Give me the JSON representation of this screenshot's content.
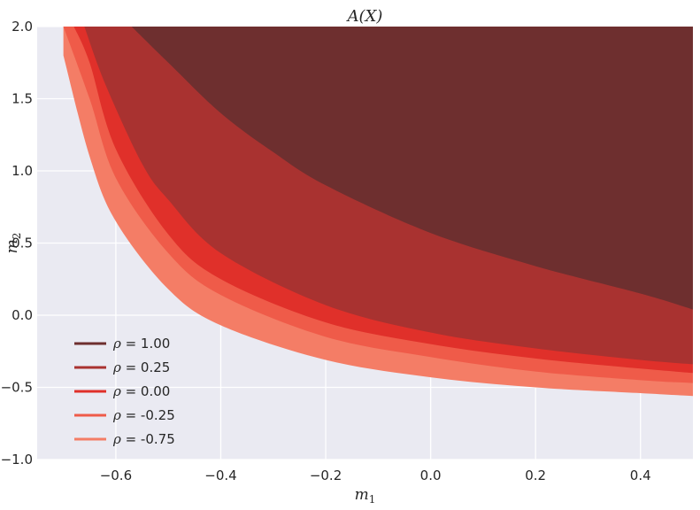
{
  "chart_data": {
    "type": "area",
    "title": "A(X)",
    "xlabel": "m1",
    "ylabel": "m2",
    "xlim": [
      -0.75,
      0.5
    ],
    "ylim": [
      -1.0,
      2.0
    ],
    "xticks": [
      -0.6,
      -0.4,
      -0.2,
      0.0,
      0.2,
      0.4
    ],
    "xtick_labels": [
      "−0.6",
      "−0.4",
      "−0.2",
      "0.0",
      "0.2",
      "0.4"
    ],
    "yticks": [
      -1.0,
      -0.5,
      0.0,
      0.5,
      1.0,
      1.5,
      2.0
    ],
    "ytick_labels": [
      "−1.0",
      "−0.5",
      "0.0",
      "0.5",
      "1.0",
      "1.5",
      "2.0"
    ],
    "grid": true,
    "legend_position": "lower-left",
    "series": [
      {
        "name": "ρ = -0.75",
        "label_symbol": "ρ",
        "label_value": " = -0.75",
        "color": "#f47d66",
        "boundary": [
          [
            -0.7,
            1.8
          ],
          [
            -0.65,
            1.1
          ],
          [
            -0.6,
            0.65
          ],
          [
            -0.5,
            0.18
          ],
          [
            -0.4,
            -0.07
          ],
          [
            -0.2,
            -0.31
          ],
          [
            0.0,
            -0.43
          ],
          [
            0.2,
            -0.5
          ],
          [
            0.4,
            -0.54
          ],
          [
            0.5,
            -0.56
          ]
        ]
      },
      {
        "name": "ρ = -0.25",
        "label_symbol": "ρ",
        "label_value": " = -0.25",
        "color": "#ef5b49",
        "boundary": [
          [
            -0.7,
            2.0
          ],
          [
            -0.65,
            1.5
          ],
          [
            -0.6,
            0.95
          ],
          [
            -0.5,
            0.43
          ],
          [
            -0.4,
            0.14
          ],
          [
            -0.2,
            -0.15
          ],
          [
            0.0,
            -0.29
          ],
          [
            0.2,
            -0.39
          ],
          [
            0.4,
            -0.45
          ],
          [
            0.5,
            -0.47
          ]
        ]
      },
      {
        "name": "ρ = 0.00",
        "label_symbol": "ρ",
        "label_value": " = 0.00",
        "color": "#e0302a",
        "boundary": [
          [
            -0.68,
            2.0
          ],
          [
            -0.65,
            1.75
          ],
          [
            -0.6,
            1.15
          ],
          [
            -0.5,
            0.56
          ],
          [
            -0.4,
            0.25
          ],
          [
            -0.2,
            -0.05
          ],
          [
            0.0,
            -0.2
          ],
          [
            0.2,
            -0.3
          ],
          [
            0.4,
            -0.37
          ],
          [
            0.5,
            -0.4
          ]
        ]
      },
      {
        "name": "ρ = 0.25",
        "label_symbol": "ρ",
        "label_value": " = 0.25",
        "color": "#a93230",
        "boundary": [
          [
            -0.66,
            2.0
          ],
          [
            -0.62,
            1.6
          ],
          [
            -0.55,
            1.05
          ],
          [
            -0.5,
            0.8
          ],
          [
            -0.4,
            0.43
          ],
          [
            -0.2,
            0.07
          ],
          [
            0.0,
            -0.12
          ],
          [
            0.2,
            -0.23
          ],
          [
            0.4,
            -0.31
          ],
          [
            0.5,
            -0.34
          ]
        ]
      },
      {
        "name": "ρ = 1.00",
        "label_symbol": "ρ",
        "label_value": " = 1.00",
        "color": "#6e2f2f",
        "boundary": [
          [
            -0.57,
            2.0
          ],
          [
            -0.5,
            1.75
          ],
          [
            -0.4,
            1.4
          ],
          [
            -0.3,
            1.13
          ],
          [
            -0.2,
            0.9
          ],
          [
            0.0,
            0.57
          ],
          [
            0.2,
            0.34
          ],
          [
            0.4,
            0.15
          ],
          [
            0.5,
            0.04
          ]
        ]
      }
    ]
  }
}
